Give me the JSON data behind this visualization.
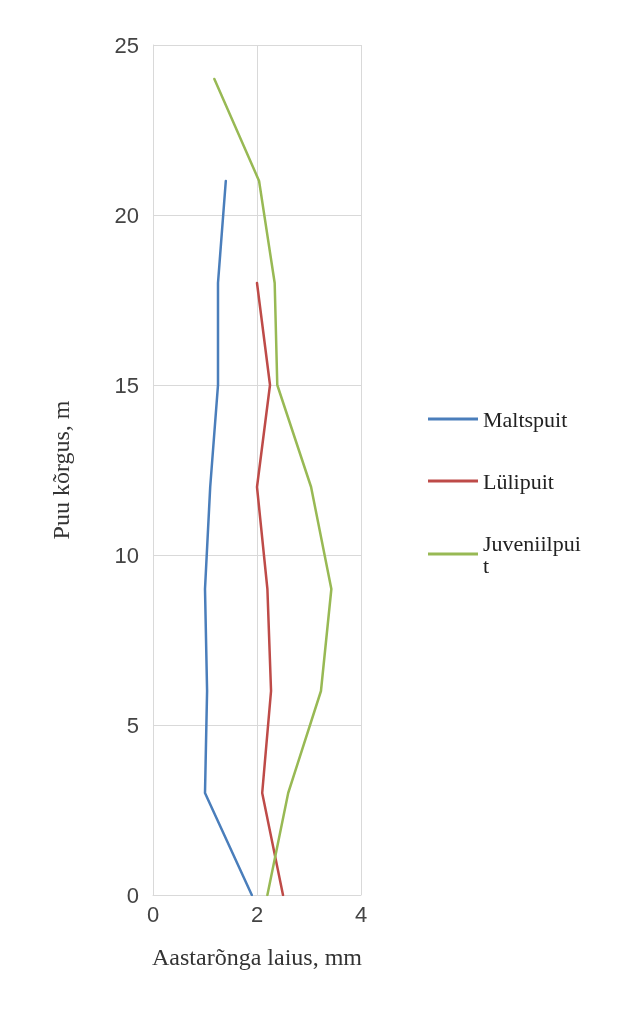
{
  "chart_data": {
    "type": "line",
    "xlabel": "Aastarõnga laius, mm",
    "ylabel": "Puu kõrgus, m",
    "xlim": [
      0,
      4
    ],
    "xticks": [
      0,
      2,
      4
    ],
    "ylim": [
      0,
      25
    ],
    "yticks": [
      0,
      5,
      10,
      15,
      20,
      25
    ],
    "grid": true,
    "legend": "right",
    "marker": "none",
    "line_style": "solid",
    "series": [
      {
        "name": "Maltspuit",
        "color": "#4a7ebb",
        "x": [
          1.9,
          1.0,
          1.04,
          1.0,
          1.1,
          1.25,
          1.25,
          1.4
        ],
        "values": [
          0,
          3,
          6,
          9,
          12,
          15,
          18,
          21
        ]
      },
      {
        "name": "Lülipuit",
        "color": "#be4b48",
        "x": [
          2.5,
          2.1,
          2.27,
          2.2,
          2.0,
          2.25,
          2.0
        ],
        "values": [
          0,
          3,
          6,
          9,
          12,
          15,
          18
        ]
      },
      {
        "name": "Juveniilpuit",
        "color": "#98b954",
        "x": [
          2.2,
          2.6,
          3.23,
          3.43,
          3.04,
          2.39,
          2.34,
          2.04,
          1.18
        ],
        "values": [
          0,
          3,
          6,
          9,
          12,
          15,
          18,
          21,
          24
        ]
      }
    ]
  }
}
